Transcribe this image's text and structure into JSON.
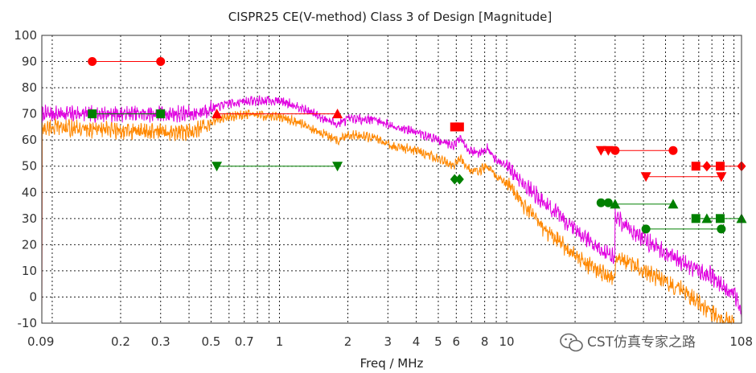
{
  "chart_data": {
    "type": "line",
    "title": "CISPR25 CE(V-method) Class 3 of Design [Magnitude]",
    "xlabel": "Freq / MHz",
    "ylabel": "",
    "x_scale": "log",
    "xlim": [
      0.09,
      108
    ],
    "ylim": [
      -10,
      100
    ],
    "grid": true,
    "y_ticks": [
      -10,
      0,
      10,
      20,
      30,
      40,
      50,
      60,
      70,
      80,
      90,
      100
    ],
    "x_tick_labels": [
      {
        "value": 0.09,
        "label": "0.09"
      },
      {
        "value": 0.2,
        "label": "0.2"
      },
      {
        "value": 0.3,
        "label": "0.3"
      },
      {
        "value": 0.5,
        "label": "0.5"
      },
      {
        "value": 0.7,
        "label": "0.7"
      },
      {
        "value": 1,
        "label": "1"
      },
      {
        "value": 2,
        "label": "2"
      },
      {
        "value": 3,
        "label": "3"
      },
      {
        "value": 4,
        "label": "4"
      },
      {
        "value": 5,
        "label": "5"
      },
      {
        "value": 6,
        "label": "6"
      },
      {
        "value": 8,
        "label": "8"
      },
      {
        "value": 10,
        "label": "10"
      },
      {
        "value": 108,
        "label": "108"
      }
    ],
    "series": [
      {
        "color": "#e000e0",
        "style": "noisy",
        "x": [
          0.09,
          0.1,
          0.15,
          0.3,
          0.42,
          0.5,
          0.6,
          0.75,
          0.9,
          1.0,
          1.2,
          1.5,
          1.8,
          2.0,
          2.6,
          3.0,
          4.0,
          5.0,
          5.8,
          6.3,
          6.8,
          7.5,
          8.2,
          9.0,
          10,
          12,
          15,
          20,
          25,
          30,
          30.01,
          35,
          40,
          50,
          60,
          70,
          80,
          90,
          100,
          108
        ],
        "y": [
          70,
          70,
          70,
          70,
          70,
          72,
          74,
          75,
          75,
          75,
          73,
          69,
          66,
          68,
          68,
          66,
          63,
          60,
          58,
          61,
          56,
          55,
          57,
          52,
          50,
          43,
          35,
          26,
          19,
          15,
          31,
          26,
          22,
          17,
          13,
          10,
          8,
          4,
          1,
          -5
        ]
      },
      {
        "color": "#ff8800",
        "style": "noisy",
        "x": [
          0.09,
          0.1,
          0.15,
          0.3,
          0.42,
          0.5,
          0.6,
          0.75,
          0.9,
          1.0,
          1.2,
          1.5,
          1.8,
          2.0,
          2.6,
          3.0,
          4.0,
          5.0,
          5.8,
          6.3,
          6.8,
          7.5,
          8.2,
          9.0,
          10,
          12,
          15,
          20,
          25,
          30,
          30.01,
          35,
          40,
          50,
          60,
          70,
          80,
          90,
          100
        ],
        "y": [
          64,
          65,
          64,
          63,
          63,
          67,
          69,
          70,
          69,
          69,
          67,
          63,
          60,
          62,
          61,
          58,
          56,
          53,
          50,
          53,
          49,
          48,
          50,
          46,
          43,
          35,
          25,
          16,
          10,
          7,
          15,
          13,
          10,
          6,
          2,
          -2,
          -6,
          -9,
          -10
        ]
      }
    ],
    "limit_lines": [
      {
        "color": "#ff0000",
        "marker": "circle",
        "x": [
          0.15,
          0.3
        ],
        "y": [
          90,
          90
        ]
      },
      {
        "color": "#008000",
        "marker": "square",
        "x": [
          0.15,
          0.3
        ],
        "y": [
          70,
          70
        ]
      },
      {
        "color": "#ff0000",
        "marker": "triangle-up",
        "x": [
          0.53,
          1.8
        ],
        "y": [
          70,
          70
        ]
      },
      {
        "color": "#008000",
        "marker": "triangle-down",
        "x": [
          0.53,
          1.8
        ],
        "y": [
          50,
          50
        ]
      },
      {
        "color": "#ff0000",
        "marker": "square",
        "x": [
          5.9,
          6.2
        ],
        "y": [
          65,
          65
        ]
      },
      {
        "color": "#008000",
        "marker": "diamond",
        "x": [
          5.9,
          6.2
        ],
        "y": [
          45,
          45
        ]
      },
      {
        "color": "#ff0000",
        "marker": "triangle-down",
        "x": [
          26,
          28
        ],
        "y": [
          56,
          56
        ]
      },
      {
        "color": "#ff0000",
        "marker": "circle",
        "x": [
          30,
          54
        ],
        "y": [
          56,
          56
        ]
      },
      {
        "color": "#008000",
        "marker": "circle",
        "x": [
          26,
          28
        ],
        "y": [
          36,
          36
        ]
      },
      {
        "color": "#008000",
        "marker": "triangle-up",
        "x": [
          30,
          54
        ],
        "y": [
          35.5,
          35.5
        ]
      },
      {
        "color": "#ff0000",
        "marker": "triangle-down",
        "x": [
          41,
          88
        ],
        "y": [
          46,
          46
        ]
      },
      {
        "color": "#008000",
        "marker": "circle",
        "x": [
          41,
          88
        ],
        "y": [
          26,
          26
        ]
      },
      {
        "color": "#ff0000",
        "marker": "square",
        "x": [
          68,
          87
        ],
        "y": [
          50,
          50
        ]
      },
      {
        "color": "#ff0000",
        "marker": "diamond",
        "x": [
          76,
          108
        ],
        "y": [
          50,
          50
        ]
      },
      {
        "color": "#008000",
        "marker": "square",
        "x": [
          68,
          87
        ],
        "y": [
          30,
          30
        ]
      },
      {
        "color": "#008000",
        "marker": "triangle-up",
        "x": [
          76,
          108
        ],
        "y": [
          30,
          30
        ]
      }
    ]
  },
  "watermark": {
    "text": "CST仿真专家之路",
    "icon": "wechat-icon"
  }
}
